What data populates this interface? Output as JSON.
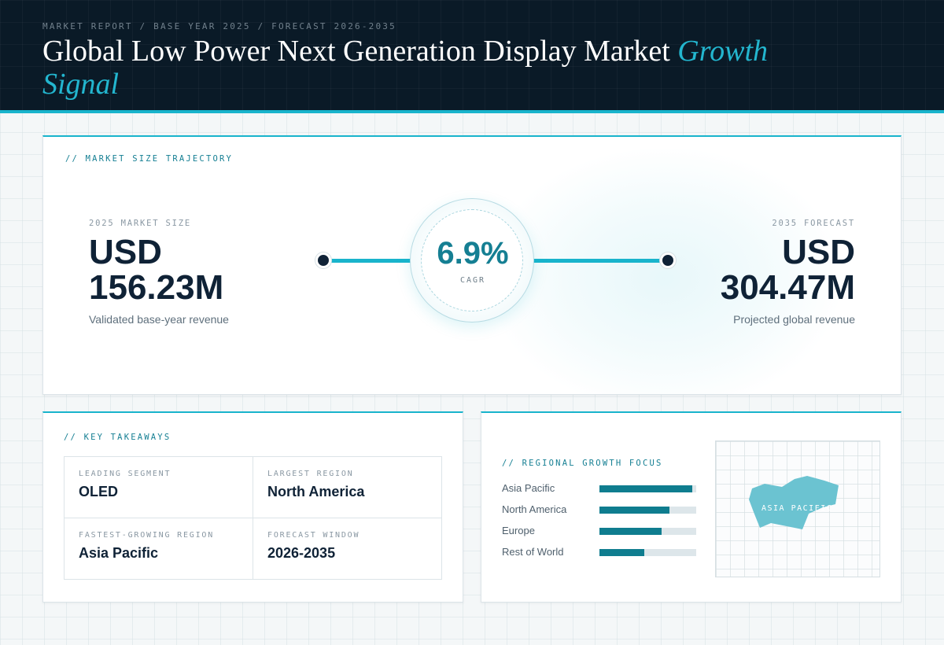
{
  "header": {
    "eyebrow": "MARKET REPORT / BASE YEAR 2025 / FORECAST 2026-2035",
    "title_main": "Global Low Power Next Generation Display Market ",
    "title_accent": "Growth Signal"
  },
  "trajectory": {
    "label": "// MARKET SIZE TRAJECTORY",
    "start": {
      "label": "2025 MARKET SIZE",
      "currency": "USD",
      "amount": "156.23M",
      "sub": "Validated base-year revenue"
    },
    "cagr": {
      "value": "6.9%",
      "label": "CAGR"
    },
    "end": {
      "label": "2035 FORECAST",
      "currency": "USD",
      "amount": "304.47M",
      "sub": "Projected global revenue"
    }
  },
  "takeaways": {
    "label": "// KEY TAKEAWAYS",
    "items": [
      {
        "label": "LEADING SEGMENT",
        "value": "OLED"
      },
      {
        "label": "LARGEST REGION",
        "value": "North America"
      },
      {
        "label": "FASTEST-GROWING REGION",
        "value": "Asia Pacific"
      },
      {
        "label": "FORECAST WINDOW",
        "value": "2026-2035"
      }
    ]
  },
  "regional": {
    "label": "// REGIONAL GROWTH FOCUS",
    "bars": [
      {
        "name": "Asia Pacific",
        "value": 0.96
      },
      {
        "name": "North America",
        "value": 0.72
      },
      {
        "name": "Europe",
        "value": 0.64
      },
      {
        "name": "Rest of World",
        "value": 0.46
      }
    ],
    "map_label": "ASIA PACIFIC"
  },
  "colors": {
    "accent": "#19b4cc",
    "bar_fill": "#0f7d8f",
    "navy": "#0a1a27",
    "map_shape": "#6bc3d1"
  }
}
